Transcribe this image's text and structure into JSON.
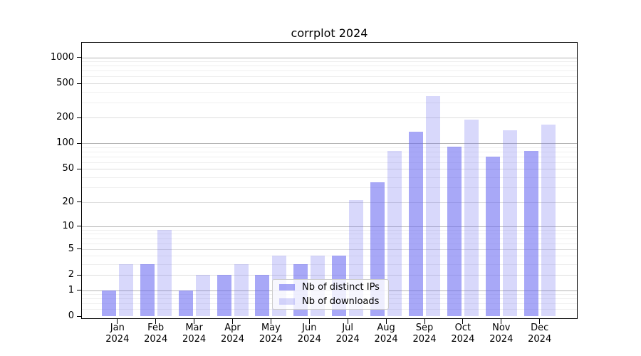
{
  "chart_data": {
    "type": "bar",
    "title": "corrplot 2024",
    "categories": [
      "Jan 2024",
      "Feb 2024",
      "Mar 2024",
      "Apr 2024",
      "May 2024",
      "Jun 2024",
      "Jul 2024",
      "Aug 2024",
      "Sep 2024",
      "Oct 2024",
      "Nov 2024",
      "Dec 2024"
    ],
    "series": [
      {
        "name": "Nb of distinct IPs",
        "color": "rgba(100,100,240,0.56)",
        "values": [
          1,
          3,
          1,
          2,
          2,
          3,
          4,
          35,
          137,
          92,
          70,
          82
        ]
      },
      {
        "name": "Nb of downloads",
        "color": "rgba(100,100,240,0.25)",
        "values": [
          3,
          9,
          2,
          3,
          4,
          4,
          21,
          82,
          355,
          188,
          143,
          166
        ]
      }
    ],
    "xlabel": "",
    "ylabel": "",
    "y_scale": "log1p",
    "ylim": [
      0,
      1000
    ],
    "y_ticks": [
      0,
      1,
      2,
      5,
      10,
      20,
      50,
      100,
      200,
      500,
      1000
    ],
    "grid": true,
    "legend_position": "lower center"
  }
}
